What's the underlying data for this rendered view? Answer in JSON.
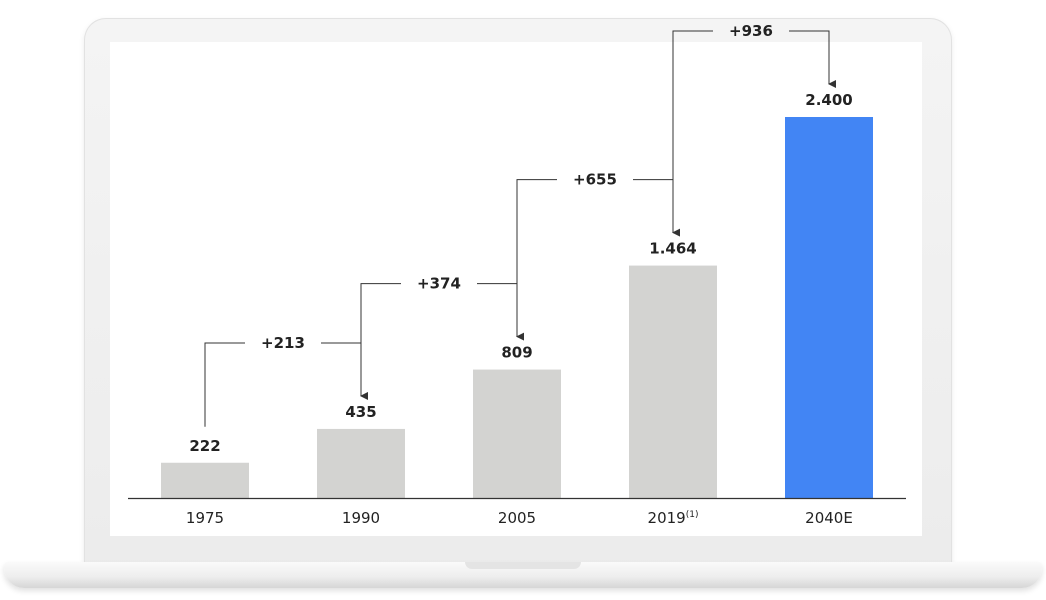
{
  "chart_data": {
    "type": "bar",
    "categories": [
      "1975",
      "1990",
      "2005",
      "2019",
      "2040E"
    ],
    "category_superscripts": [
      "",
      "",
      "",
      "(1)",
      ""
    ],
    "values": [
      222,
      435,
      809,
      1464,
      2400
    ],
    "value_labels": [
      "222",
      "435",
      "809",
      "1.464",
      "2.400"
    ],
    "increments": [
      {
        "from": "1975",
        "to": "1990",
        "label": "+213"
      },
      {
        "from": "1990",
        "to": "2005",
        "label": "+374"
      },
      {
        "from": "2005",
        "to": "2019",
        "label": "+655"
      },
      {
        "from": "2019",
        "to": "2040E",
        "label": "+936"
      }
    ],
    "title": "",
    "xlabel": "",
    "ylabel": "",
    "ylim": [
      0,
      2400
    ],
    "grid": false,
    "legend": "none",
    "colors": {
      "historical": "#d3d3d1",
      "estimate": "#4285f4",
      "axis": "#333333",
      "connector": "#333333"
    }
  }
}
